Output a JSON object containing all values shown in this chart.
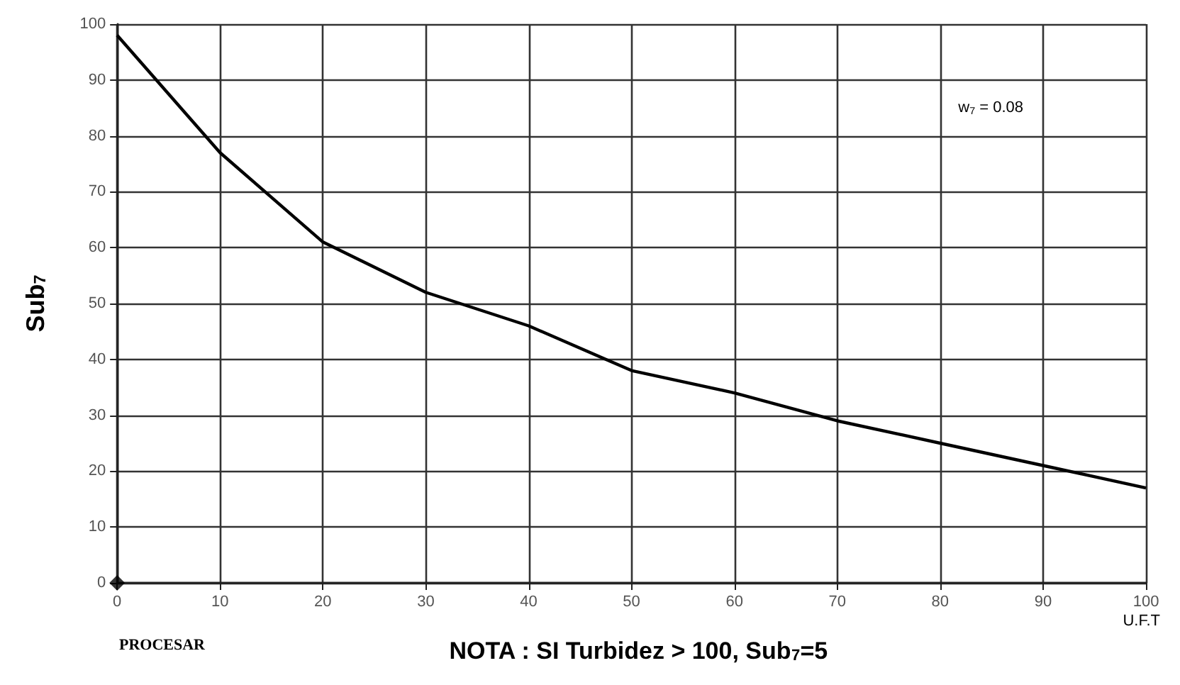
{
  "chart_data": {
    "type": "line",
    "ylabel": "Sub$_{7}$",
    "xlabel": "U.F.T",
    "annotations": [
      "w$_{7}$ = 0.08",
      "PROCESAR",
      "NOTA : SI Turbidez > 100, Sub$_{7}$=5"
    ],
    "x": [
      0,
      10,
      20,
      30,
      40,
      50,
      60,
      70,
      80,
      90,
      100
    ],
    "series": [
      {
        "color": "#000000",
        "values": [
          98,
          77,
          61,
          52,
          46,
          38,
          34,
          29,
          25,
          21,
          17
        ],
        "marker": "none",
        "line_style": "solid"
      },
      {
        "type": "scatter",
        "color": "#000000",
        "x": [
          0
        ],
        "values": [
          0
        ],
        "marker": "diamond"
      }
    ],
    "xlim": [
      0,
      100
    ],
    "ylim": [
      0,
      100
    ],
    "xticks": [
      0,
      10,
      20,
      30,
      40,
      50,
      60,
      70,
      80,
      90,
      100
    ],
    "yticks": [
      0,
      10,
      20,
      30,
      40,
      50,
      60,
      70,
      80,
      90,
      100
    ],
    "grid": true
  }
}
